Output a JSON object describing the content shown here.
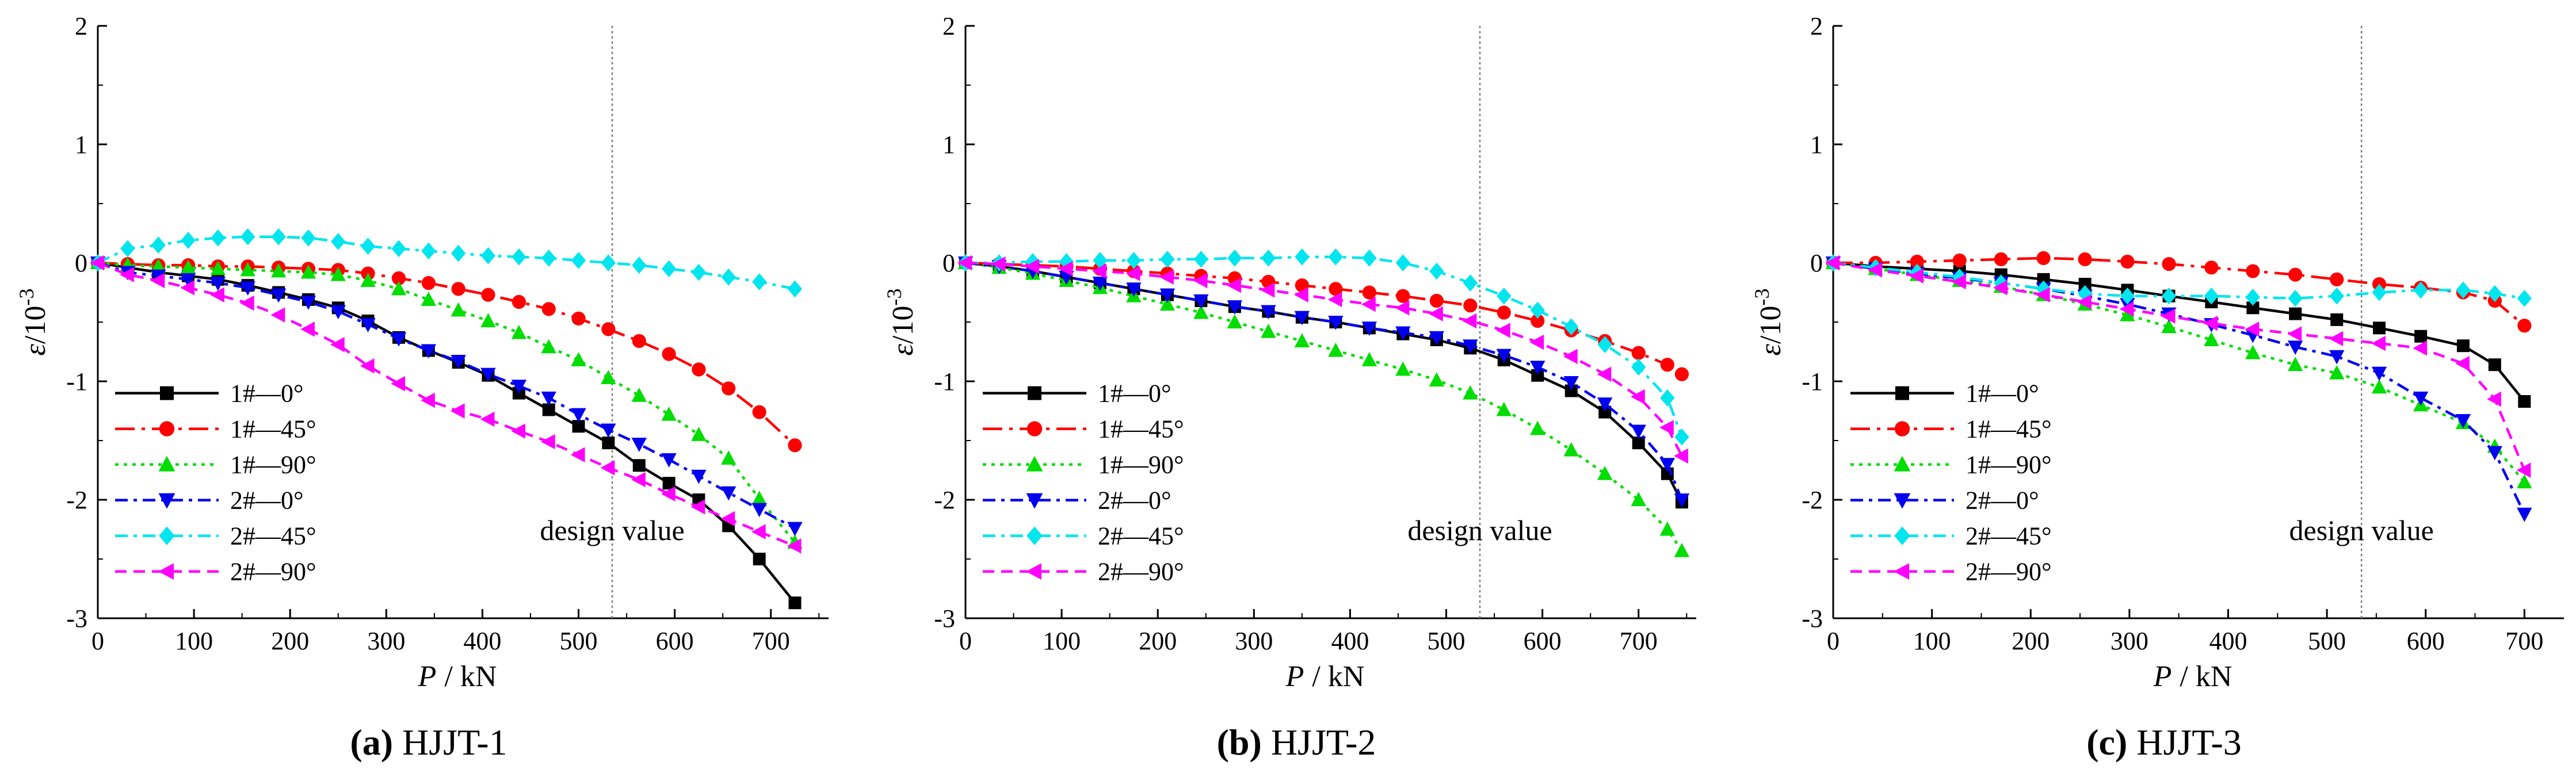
{
  "figure": {
    "panels": [
      {
        "caption_letter": "(a)",
        "caption_label": "HJJT-1"
      },
      {
        "caption_letter": "(b)",
        "caption_label": "HJJT-2"
      },
      {
        "caption_letter": "(c)",
        "caption_label": "HJJT-3"
      }
    ]
  },
  "style": {
    "series_colors": [
      "#000000",
      "#ff0000",
      "#00dd00",
      "#0000ee",
      "#00e5ee",
      "#ff00ff"
    ],
    "series_markers": [
      "square",
      "circle",
      "triangle-up",
      "triangle-down",
      "diamond",
      "triangle-left"
    ],
    "series_dashes": [
      "solid",
      "dash-dot-long",
      "dot-dense",
      "dash-dot",
      "dash-dot",
      "dash"
    ],
    "annotation_line_color": "#777777"
  },
  "chart_data": [
    {
      "type": "line",
      "title": "",
      "xlabel_var": "P",
      "xlabel_unit": "/ kN",
      "ylabel_var": "ε",
      "ylabel_unit": "/10",
      "ylabel_exp": "-3",
      "xlim": [
        0,
        760
      ],
      "ylim": [
        -3,
        2
      ],
      "xticks": [
        0,
        100,
        200,
        300,
        400,
        500,
        600,
        700
      ],
      "yticks": [
        -3,
        -2,
        -1,
        0,
        1,
        2
      ],
      "grid": false,
      "legend_position": "bottom-left",
      "annotation": {
        "x": 535,
        "label": "design value"
      },
      "series": [
        {
          "name": "1#—0°",
          "x": [
            0,
            31,
            63,
            94,
            125,
            156,
            188,
            219,
            250,
            281,
            313,
            344,
            375,
            406,
            438,
            469,
            500,
            531,
            563,
            594,
            625,
            656,
            688,
            725
          ],
          "values": [
            0,
            -0.04,
            -0.08,
            -0.11,
            -0.14,
            -0.19,
            -0.25,
            -0.31,
            -0.38,
            -0.49,
            -0.63,
            -0.74,
            -0.84,
            -0.95,
            -1.1,
            -1.24,
            -1.38,
            -1.52,
            -1.71,
            -1.86,
            -2.0,
            -2.22,
            -2.5,
            -2.87
          ]
        },
        {
          "name": "1#—45°",
          "x": [
            0,
            31,
            63,
            94,
            125,
            156,
            188,
            219,
            250,
            281,
            313,
            344,
            375,
            406,
            438,
            469,
            500,
            531,
            563,
            594,
            625,
            656,
            688,
            725
          ],
          "values": [
            0,
            -0.01,
            -0.02,
            -0.02,
            -0.03,
            -0.03,
            -0.04,
            -0.05,
            -0.06,
            -0.09,
            -0.13,
            -0.17,
            -0.22,
            -0.27,
            -0.33,
            -0.39,
            -0.47,
            -0.56,
            -0.66,
            -0.77,
            -0.9,
            -1.06,
            -1.26,
            -1.54
          ]
        },
        {
          "name": "1#—90°",
          "x": [
            0,
            31,
            63,
            94,
            125,
            156,
            188,
            219,
            250,
            281,
            313,
            344,
            375,
            406,
            438,
            469,
            500,
            531,
            563,
            594,
            625,
            656,
            688,
            725
          ],
          "values": [
            0,
            -0.02,
            -0.03,
            -0.04,
            -0.05,
            -0.06,
            -0.07,
            -0.08,
            -0.1,
            -0.15,
            -0.22,
            -0.31,
            -0.4,
            -0.49,
            -0.59,
            -0.71,
            -0.82,
            -0.97,
            -1.12,
            -1.28,
            -1.45,
            -1.65,
            -1.99,
            -2.36
          ]
        },
        {
          "name": "2#—0°",
          "x": [
            0,
            31,
            63,
            94,
            125,
            156,
            188,
            219,
            250,
            281,
            313,
            344,
            375,
            406,
            438,
            469,
            500,
            531,
            563,
            594,
            625,
            656,
            688,
            725
          ],
          "values": [
            0,
            -0.08,
            -0.11,
            -0.14,
            -0.17,
            -0.21,
            -0.27,
            -0.33,
            -0.41,
            -0.52,
            -0.64,
            -0.74,
            -0.83,
            -0.94,
            -1.04,
            -1.14,
            -1.28,
            -1.41,
            -1.53,
            -1.66,
            -1.8,
            -1.94,
            -2.08,
            -2.24
          ]
        },
        {
          "name": "2#—45°",
          "x": [
            0,
            31,
            63,
            94,
            125,
            156,
            188,
            219,
            250,
            281,
            313,
            344,
            375,
            406,
            438,
            469,
            500,
            531,
            563,
            594,
            625,
            656,
            688,
            725
          ],
          "values": [
            0,
            0.12,
            0.15,
            0.19,
            0.21,
            0.22,
            0.22,
            0.21,
            0.18,
            0.14,
            0.12,
            0.1,
            0.08,
            0.06,
            0.05,
            0.04,
            0.02,
            0.0,
            -0.02,
            -0.05,
            -0.08,
            -0.12,
            -0.16,
            -0.22
          ]
        },
        {
          "name": "2#—90°",
          "x": [
            0,
            31,
            63,
            94,
            125,
            156,
            188,
            219,
            250,
            281,
            313,
            344,
            375,
            406,
            438,
            469,
            500,
            531,
            563,
            594,
            625,
            656,
            688,
            725
          ],
          "values": [
            0,
            -0.1,
            -0.15,
            -0.21,
            -0.27,
            -0.34,
            -0.44,
            -0.56,
            -0.69,
            -0.87,
            -1.02,
            -1.16,
            -1.25,
            -1.32,
            -1.42,
            -1.51,
            -1.62,
            -1.73,
            -1.83,
            -1.95,
            -2.06,
            -2.16,
            -2.27,
            -2.39
          ]
        }
      ]
    },
    {
      "type": "line",
      "title": "",
      "xlabel_var": "P",
      "xlabel_unit": "/ kN",
      "ylabel_var": "ε",
      "ylabel_unit": "/10",
      "ylabel_exp": "-3",
      "xlim": [
        0,
        760
      ],
      "ylim": [
        -3,
        2
      ],
      "xticks": [
        0,
        100,
        200,
        300,
        400,
        500,
        600,
        700
      ],
      "yticks": [
        -3,
        -2,
        -1,
        0,
        1,
        2
      ],
      "grid": false,
      "legend_position": "bottom-left",
      "annotation": {
        "x": 535,
        "label": "design value"
      },
      "series": [
        {
          "name": "1#—0°",
          "x": [
            0,
            35,
            70,
            105,
            140,
            175,
            210,
            245,
            280,
            315,
            350,
            385,
            420,
            455,
            490,
            525,
            560,
            595,
            630,
            665,
            700,
            730,
            745
          ],
          "values": [
            0,
            -0.03,
            -0.07,
            -0.12,
            -0.17,
            -0.22,
            -0.27,
            -0.32,
            -0.37,
            -0.41,
            -0.46,
            -0.5,
            -0.55,
            -0.6,
            -0.65,
            -0.72,
            -0.82,
            -0.95,
            -1.08,
            -1.26,
            -1.52,
            -1.78,
            -2.02
          ]
        },
        {
          "name": "1#—45°",
          "x": [
            0,
            35,
            70,
            105,
            140,
            175,
            210,
            245,
            280,
            315,
            350,
            385,
            420,
            455,
            490,
            525,
            560,
            595,
            630,
            665,
            700,
            730,
            745
          ],
          "values": [
            0,
            -0.01,
            -0.02,
            -0.03,
            -0.05,
            -0.07,
            -0.09,
            -0.11,
            -0.13,
            -0.16,
            -0.19,
            -0.22,
            -0.25,
            -0.28,
            -0.32,
            -0.36,
            -0.42,
            -0.49,
            -0.57,
            -0.66,
            -0.76,
            -0.86,
            -0.94
          ]
        },
        {
          "name": "1#—90°",
          "x": [
            0,
            35,
            70,
            105,
            140,
            175,
            210,
            245,
            280,
            315,
            350,
            385,
            420,
            455,
            490,
            525,
            560,
            595,
            630,
            665,
            700,
            730,
            745
          ],
          "values": [
            0,
            -0.04,
            -0.09,
            -0.15,
            -0.21,
            -0.28,
            -0.35,
            -0.42,
            -0.5,
            -0.58,
            -0.66,
            -0.74,
            -0.82,
            -0.9,
            -0.99,
            -1.1,
            -1.24,
            -1.4,
            -1.58,
            -1.78,
            -2.0,
            -2.25,
            -2.43
          ]
        },
        {
          "name": "2#—0°",
          "x": [
            0,
            35,
            70,
            105,
            140,
            175,
            210,
            245,
            280,
            315,
            350,
            385,
            420,
            455,
            490,
            525,
            560,
            595,
            630,
            665,
            700,
            730,
            745
          ],
          "values": [
            0,
            -0.03,
            -0.07,
            -0.12,
            -0.17,
            -0.22,
            -0.27,
            -0.32,
            -0.37,
            -0.41,
            -0.46,
            -0.5,
            -0.55,
            -0.59,
            -0.63,
            -0.7,
            -0.78,
            -0.88,
            -1.01,
            -1.19,
            -1.42,
            -1.7,
            -2.0
          ]
        },
        {
          "name": "2#—45°",
          "x": [
            0,
            35,
            70,
            105,
            140,
            175,
            210,
            245,
            280,
            315,
            350,
            385,
            420,
            455,
            490,
            525,
            560,
            595,
            630,
            665,
            700,
            730,
            745
          ],
          "values": [
            0,
            0.0,
            0.01,
            0.01,
            0.02,
            0.02,
            0.03,
            0.03,
            0.04,
            0.04,
            0.05,
            0.05,
            0.04,
            0.0,
            -0.07,
            -0.17,
            -0.28,
            -0.4,
            -0.54,
            -0.69,
            -0.88,
            -1.14,
            -1.47
          ]
        },
        {
          "name": "2#—90°",
          "x": [
            0,
            35,
            70,
            105,
            140,
            175,
            210,
            245,
            280,
            315,
            350,
            385,
            420,
            455,
            490,
            525,
            560,
            595,
            630,
            665,
            700,
            730,
            745
          ],
          "values": [
            0,
            -0.01,
            -0.03,
            -0.05,
            -0.07,
            -0.09,
            -0.12,
            -0.15,
            -0.19,
            -0.23,
            -0.27,
            -0.31,
            -0.35,
            -0.38,
            -0.43,
            -0.49,
            -0.57,
            -0.67,
            -0.79,
            -0.94,
            -1.13,
            -1.39,
            -1.63
          ]
        }
      ]
    },
    {
      "type": "line",
      "title": "",
      "xlabel_var": "P",
      "xlabel_unit": "/ kN",
      "ylabel_var": "ε",
      "ylabel_unit": "/10",
      "ylabel_exp": "-3",
      "xlim": [
        0,
        740
      ],
      "ylim": [
        -3,
        2
      ],
      "xticks": [
        0,
        100,
        200,
        300,
        400,
        500,
        600,
        700
      ],
      "yticks": [
        -3,
        -2,
        -1,
        0,
        1,
        2
      ],
      "grid": false,
      "legend_position": "bottom-left",
      "annotation": {
        "x": 535,
        "label": "design value"
      },
      "series": [
        {
          "name": "1#—0°",
          "x": [
            0,
            43,
            85,
            128,
            170,
            213,
            255,
            298,
            340,
            383,
            425,
            468,
            510,
            553,
            595,
            638,
            670,
            700
          ],
          "values": [
            0,
            -0.03,
            -0.05,
            -0.07,
            -0.1,
            -0.14,
            -0.18,
            -0.23,
            -0.28,
            -0.33,
            -0.38,
            -0.43,
            -0.48,
            -0.55,
            -0.62,
            -0.7,
            -0.86,
            -1.17
          ]
        },
        {
          "name": "1#—45°",
          "x": [
            0,
            43,
            85,
            128,
            170,
            213,
            255,
            298,
            340,
            383,
            425,
            468,
            510,
            553,
            595,
            638,
            670,
            700
          ],
          "values": [
            0,
            0.0,
            0.01,
            0.02,
            0.03,
            0.04,
            0.03,
            0.01,
            -0.01,
            -0.04,
            -0.07,
            -0.1,
            -0.14,
            -0.18,
            -0.21,
            -0.25,
            -0.32,
            -0.53
          ]
        },
        {
          "name": "1#—90°",
          "x": [
            0,
            43,
            85,
            128,
            170,
            213,
            255,
            298,
            340,
            383,
            425,
            468,
            510,
            553,
            595,
            638,
            670,
            700
          ],
          "values": [
            0,
            -0.05,
            -0.1,
            -0.15,
            -0.2,
            -0.27,
            -0.35,
            -0.44,
            -0.54,
            -0.65,
            -0.76,
            -0.86,
            -0.93,
            -1.05,
            -1.2,
            -1.35,
            -1.55,
            -1.85
          ]
        },
        {
          "name": "2#—0°",
          "x": [
            0,
            43,
            85,
            128,
            170,
            213,
            255,
            298,
            340,
            383,
            425,
            468,
            510,
            553,
            595,
            638,
            670,
            700
          ],
          "values": [
            0,
            -0.05,
            -0.09,
            -0.13,
            -0.17,
            -0.22,
            -0.28,
            -0.35,
            -0.43,
            -0.52,
            -0.61,
            -0.71,
            -0.79,
            -0.93,
            -1.14,
            -1.33,
            -1.6,
            -2.12
          ]
        },
        {
          "name": "2#—45°",
          "x": [
            0,
            43,
            85,
            128,
            170,
            213,
            255,
            298,
            340,
            383,
            425,
            468,
            510,
            553,
            595,
            638,
            670,
            700
          ],
          "values": [
            0,
            -0.04,
            -0.08,
            -0.12,
            -0.17,
            -0.22,
            -0.26,
            -0.28,
            -0.28,
            -0.28,
            -0.29,
            -0.3,
            -0.28,
            -0.25,
            -0.23,
            -0.23,
            -0.26,
            -0.3
          ]
        },
        {
          "name": "2#—90°",
          "x": [
            0,
            43,
            85,
            128,
            170,
            213,
            255,
            298,
            340,
            383,
            425,
            468,
            510,
            553,
            595,
            638,
            670,
            700
          ],
          "values": [
            0,
            -0.06,
            -0.11,
            -0.16,
            -0.21,
            -0.27,
            -0.33,
            -0.39,
            -0.45,
            -0.51,
            -0.56,
            -0.6,
            -0.64,
            -0.68,
            -0.72,
            -0.85,
            -1.15,
            -1.75
          ]
        }
      ]
    }
  ]
}
